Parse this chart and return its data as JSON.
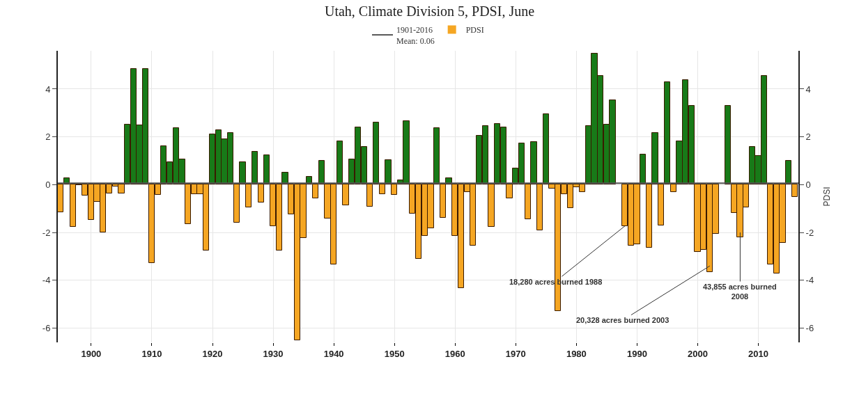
{
  "chart_data": {
    "type": "bar",
    "title": "Utah, Climate Division 5, PDSI, June",
    "y2label": "PDSI",
    "x": [
      1895,
      1896,
      1897,
      1898,
      1899,
      1900,
      1901,
      1902,
      1903,
      1904,
      1905,
      1906,
      1907,
      1908,
      1909,
      1910,
      1911,
      1912,
      1913,
      1914,
      1915,
      1916,
      1917,
      1918,
      1919,
      1920,
      1921,
      1922,
      1923,
      1924,
      1925,
      1926,
      1927,
      1928,
      1929,
      1930,
      1931,
      1932,
      1933,
      1934,
      1935,
      1936,
      1937,
      1938,
      1939,
      1940,
      1941,
      1942,
      1943,
      1944,
      1945,
      1946,
      1947,
      1948,
      1949,
      1950,
      1951,
      1952,
      1953,
      1954,
      1955,
      1956,
      1957,
      1958,
      1959,
      1960,
      1961,
      1962,
      1963,
      1964,
      1965,
      1966,
      1967,
      1968,
      1969,
      1970,
      1971,
      1972,
      1973,
      1974,
      1975,
      1976,
      1977,
      1978,
      1979,
      1980,
      1981,
      1982,
      1983,
      1984,
      1985,
      1986,
      1987,
      1988,
      1989,
      1990,
      1991,
      1992,
      1993,
      1994,
      1995,
      1996,
      1997,
      1998,
      1999,
      2000,
      2001,
      2002,
      2003,
      2004,
      2005,
      2006,
      2007,
      2008,
      2009,
      2010,
      2011,
      2012,
      2013,
      2014,
      2015,
      2016
    ],
    "series": [
      {
        "name": "PDSI",
        "color": "#f5a623",
        "values": [
          -1.15,
          0.26,
          -1.78,
          -0.03,
          -0.47,
          -1.47,
          -0.71,
          -2.0,
          -0.37,
          -0.08,
          -0.37,
          2.51,
          4.83,
          2.48,
          4.83,
          -3.28,
          -0.44,
          1.6,
          0.94,
          2.37,
          1.07,
          -1.66,
          -0.4,
          -0.4,
          -2.75,
          2.1,
          2.29,
          1.89,
          2.16,
          -1.58,
          0.94,
          -0.94,
          1.39,
          -0.74,
          1.24,
          -1.73,
          -2.75,
          0.5,
          -1.24,
          -6.5,
          -2.24,
          0.33,
          -0.58,
          1.0,
          -1.42,
          -3.35,
          1.82,
          -0.87,
          1.07,
          2.4,
          1.59,
          -0.92,
          2.61,
          -0.4,
          1.03,
          -0.44,
          0.17,
          2.67,
          -1.22,
          -3.12,
          -2.14,
          -1.83,
          2.36,
          -1.39,
          0.26,
          -2.15,
          -4.32,
          -0.32,
          -2.55,
          2.06,
          2.47,
          -1.78,
          2.54,
          2.4,
          -0.58,
          0.67,
          1.72,
          -1.44,
          1.79,
          -1.9,
          2.94,
          -0.17,
          -5.3,
          -0.39,
          -0.98,
          -0.11,
          -0.3,
          2.47,
          5.49,
          4.55,
          2.5,
          3.54,
          null,
          -1.73,
          -2.55,
          -2.48,
          1.27,
          -2.63,
          2.16,
          -1.7,
          4.29,
          -0.3,
          1.82,
          4.37,
          3.31,
          -2.82,
          -2.72,
          -3.67,
          -2.07,
          null,
          3.31,
          -1.19,
          -2.21,
          -0.95,
          1.57,
          1.2,
          4.55,
          -3.33,
          -3.72,
          -2.44,
          0.99,
          -0.51
        ],
        "colors": [
          "#f5a623",
          "#187a18",
          "#f5a623",
          "#f5a623",
          "#f5a623",
          "#f5a623",
          "#f5a623",
          "#f5a623",
          "#f5a623",
          "#f5a623",
          "#f5a623",
          "#187a18",
          "#187a18",
          "#187a18",
          "#187a18",
          "#f5a623",
          "#f5a623",
          "#187a18",
          "#187a18",
          "#187a18",
          "#187a18",
          "#f5a623",
          "#f5a623",
          "#f5a623",
          "#f5a623",
          "#187a18",
          "#187a18",
          "#187a18",
          "#187a18",
          "#f5a623",
          "#187a18",
          "#f5a623",
          "#187a18",
          "#f5a623",
          "#187a18",
          "#f5a623",
          "#f5a623",
          "#187a18",
          "#f5a623",
          "#f5a623",
          "#f5a623",
          "#187a18",
          "#f5a623",
          "#187a18",
          "#f5a623",
          "#f5a623",
          "#187a18",
          "#f5a623",
          "#187a18",
          "#187a18",
          "#187a18",
          "#f5a623",
          "#187a18",
          "#f5a623",
          "#187a18",
          "#f5a623",
          "#187a18",
          "#187a18",
          "#f5a623",
          "#f5a623",
          "#f5a623",
          "#f5a623",
          "#187a18",
          "#f5a623",
          "#187a18",
          "#f5a623",
          "#f5a623",
          "#f5a623",
          "#f5a623",
          "#187a18",
          "#187a18",
          "#f5a623",
          "#187a18",
          "#187a18",
          "#f5a623",
          "#187a18",
          "#187a18",
          "#f5a623",
          "#187a18",
          "#f5a623",
          "#187a18",
          "#f5a623",
          "#f5a623",
          "#f5a623",
          "#f5a623",
          "#f5a623",
          "#f5a623",
          "#187a18",
          "#187a18",
          "#187a18",
          "#187a18",
          "#187a18",
          "#f5a623",
          "#f5a623",
          "#f5a623",
          "#f5a623",
          "#187a18",
          "#f5a623",
          "#187a18",
          "#f5a623",
          "#187a18",
          "#f5a623",
          "#187a18",
          "#187a18",
          "#187a18",
          "#f5a623",
          "#f5a623",
          "#f5a623",
          "#f5a623",
          "#f5a623",
          "#187a18",
          "#f5a623",
          "#f5a623",
          "#f5a623",
          "#187a18",
          "#187a18",
          "#187a18",
          "#f5a623",
          "#f5a623",
          "#f5a623",
          "#187a18",
          "#f5a623"
        ]
      }
    ],
    "ref_lines": [
      {
        "axis": "y",
        "value": 0.06,
        "label": "1901-2016\nMean: 0.06",
        "color": "#555555"
      }
    ],
    "annotations": [
      {
        "text": "18,280 acres burned 1988",
        "x": 1988,
        "y": -1.73
      },
      {
        "text": "20,328 acres burned 2003",
        "x": 2002,
        "y": -3.4
      },
      {
        "text": "43,855 acres burned\n2008",
        "x": 2007,
        "y": -2.0
      }
    ],
    "xlim": [
      1894.5,
      2016.6
    ],
    "xticks": [
      1900,
      1910,
      1920,
      1930,
      1940,
      1950,
      1960,
      1970,
      1980,
      1990,
      2000,
      2010
    ],
    "ylim": [
      -6.6,
      5.6
    ],
    "yticks": [
      -6,
      -4,
      -2,
      0,
      2,
      4
    ],
    "y2lim": [
      -6.6,
      5.6
    ],
    "y2ticks": [
      -6,
      -4,
      -2,
      0,
      2,
      4
    ],
    "grid": true,
    "legend": "top"
  }
}
